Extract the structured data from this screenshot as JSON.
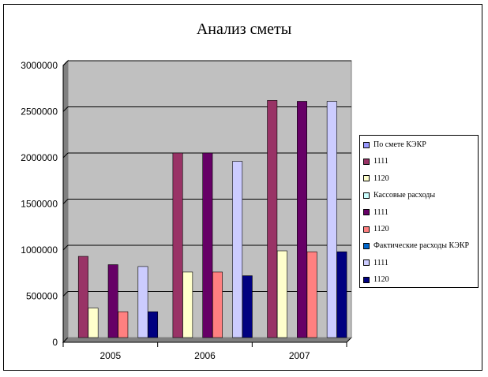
{
  "chart_data": {
    "type": "bar",
    "title": "Анализ сметы",
    "categories": [
      "2005",
      "2006",
      "2007"
    ],
    "ylim": [
      0,
      3000000
    ],
    "yticks": [
      "0",
      "500000",
      "1000000",
      "1500000",
      "2000000",
      "2500000",
      "3000000"
    ],
    "grid": true,
    "legend_position": "right",
    "series": [
      {
        "name": "По смете КЭКР",
        "color": "#9999ff",
        "values": [
          0,
          0,
          0
        ]
      },
      {
        "name": "1111",
        "color": "#993366",
        "values": [
          880000,
          2000000,
          2570000
        ]
      },
      {
        "name": "1120",
        "color": "#ffffcc",
        "values": [
          320000,
          710000,
          940000
        ]
      },
      {
        "name": "Кассовые расходы",
        "color": "#ccffff",
        "values": [
          0,
          0,
          0
        ]
      },
      {
        "name": "1111",
        "color": "#660066",
        "values": [
          790000,
          2000000,
          2560000
        ]
      },
      {
        "name": "1120",
        "color": "#ff8080",
        "values": [
          280000,
          710000,
          930000
        ]
      },
      {
        "name": "Фактические расходы КЭКР",
        "color": "#0066cc",
        "values": [
          0,
          0,
          0
        ]
      },
      {
        "name": "1111",
        "color": "#ccccff",
        "values": [
          770000,
          1910000,
          2560000
        ]
      },
      {
        "name": "1120",
        "color": "#000080",
        "values": [
          280000,
          670000,
          930000
        ]
      }
    ]
  }
}
